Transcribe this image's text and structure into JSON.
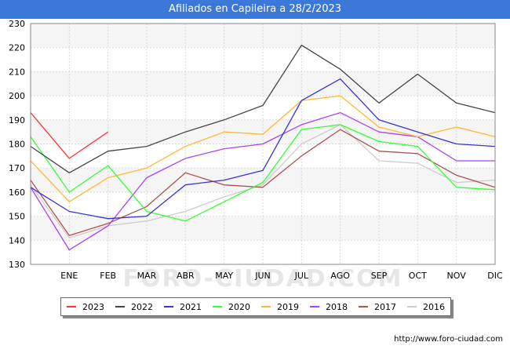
{
  "header": {
    "title": "Afiliados en Capileira a 28/2/2023"
  },
  "footer": {
    "url": "http://www.foro-ciudad.com"
  },
  "watermark": "FORO-CIUDAD.COM",
  "chart_data": {
    "type": "line",
    "title": "Afiliados en Capileira a 28/2/2023",
    "categories": [
      "",
      "ENE",
      "FEB",
      "MAR",
      "ABR",
      "MAY",
      "JUN",
      "JUL",
      "AGO",
      "SEP",
      "OCT",
      "NOV",
      "DIC"
    ],
    "y_ticks": [
      "130",
      "140",
      "150",
      "160",
      "170",
      "180",
      "190",
      "200",
      "210",
      "220",
      "230"
    ],
    "ylim": [
      130,
      230
    ],
    "grid": true,
    "legend_position": "bottom",
    "series": [
      {
        "name": "2023",
        "color": "#ff3333",
        "values": [
          193,
          174,
          185,
          null,
          null,
          null,
          null,
          null,
          null,
          null,
          null,
          null,
          null
        ]
      },
      {
        "name": "2022",
        "color": "#444444",
        "values": [
          179,
          168,
          177,
          179,
          185,
          190,
          196,
          221,
          211,
          197,
          209,
          197,
          193
        ]
      },
      {
        "name": "2021",
        "color": "#3333dd",
        "values": [
          162,
          152,
          149,
          150,
          163,
          165,
          169,
          198,
          207,
          190,
          185,
          180,
          179
        ]
      },
      {
        "name": "2020",
        "color": "#33ff33",
        "values": [
          183,
          160,
          171,
          152,
          148,
          156,
          164,
          186,
          188,
          181,
          179,
          162,
          161
        ]
      },
      {
        "name": "2019",
        "color": "#ffb833",
        "values": [
          173,
          156,
          166,
          170,
          179,
          185,
          184,
          198,
          200,
          187,
          183,
          187,
          183
        ]
      },
      {
        "name": "2018",
        "color": "#b040f0",
        "values": [
          162,
          136,
          146,
          166,
          174,
          178,
          180,
          188,
          193,
          185,
          183,
          173,
          173
        ]
      },
      {
        "name": "2017",
        "color": "#b05050",
        "values": [
          165,
          142,
          147,
          154,
          168,
          163,
          162,
          175,
          186,
          177,
          176,
          167,
          162
        ]
      },
      {
        "name": "2016",
        "color": "#cccccc",
        "values": [
          163,
          141,
          146,
          148,
          152,
          158,
          163,
          180,
          188,
          173,
          172,
          164,
          165
        ]
      }
    ]
  }
}
